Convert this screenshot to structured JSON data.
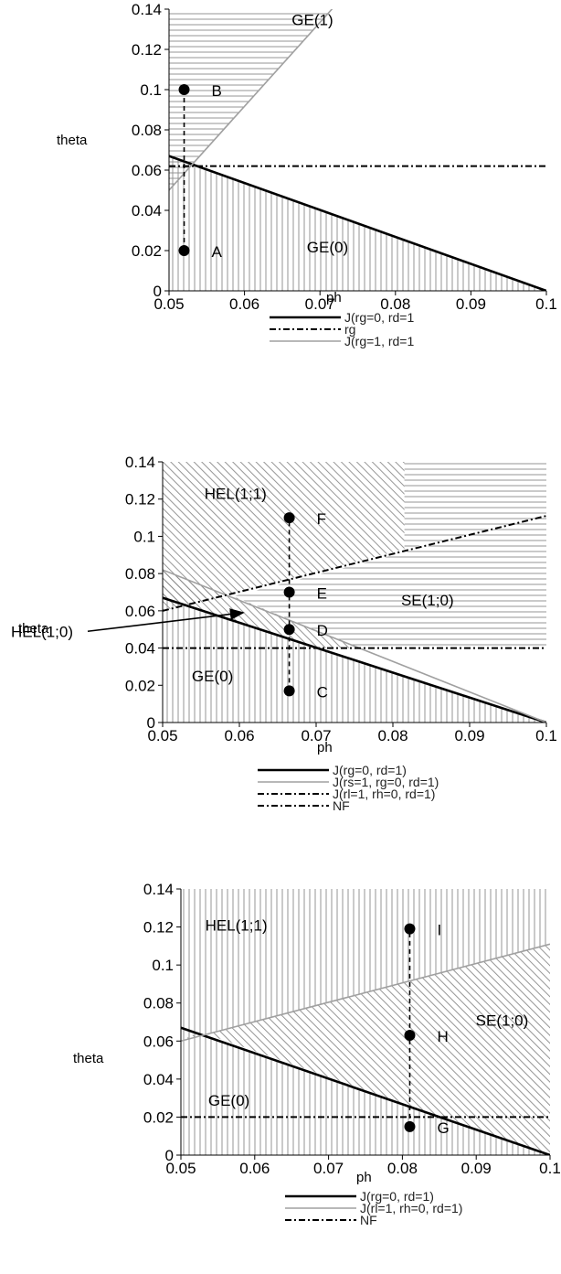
{
  "chart_data": [
    {
      "type": "line",
      "xlabel": "ph",
      "ylabel": "theta",
      "xlim": [
        0.05,
        0.1
      ],
      "ylim": [
        0,
        0.14
      ],
      "x_ticks": [
        "0.05",
        "0.06",
        "0.07",
        "0.08",
        "0.09",
        "0.1"
      ],
      "y_ticks": [
        "0",
        "0.02",
        "0.04",
        "0.06",
        "0.08",
        "0.1",
        "0.12",
        "0.14"
      ],
      "lines": [
        {
          "name": "J(rg=0, rd=1",
          "style": "solid-thick",
          "x": [
            0.05,
            0.1
          ],
          "y": [
            0.067,
            0.0
          ]
        },
        {
          "name": "rg",
          "style": "dashdot",
          "x": [
            0.05,
            0.1
          ],
          "y": [
            0.062,
            0.062
          ]
        },
        {
          "name": "J(rg=1, rd=1",
          "style": "solid-gray",
          "x": [
            0.05,
            0.0735
          ],
          "y": [
            0.05,
            0.148
          ]
        }
      ],
      "legend": [
        "J(rg=0, rd=1",
        "rg",
        "J(rg=1, rd=1"
      ],
      "regions": [
        {
          "label": "GE(1)",
          "x": 0.069,
          "y": 0.132
        },
        {
          "label": "GE(0)",
          "x": 0.071,
          "y": 0.019
        }
      ],
      "points": [
        {
          "label": "B",
          "x": 0.052,
          "y": 0.1
        },
        {
          "label": "A",
          "x": 0.052,
          "y": 0.02
        }
      ],
      "guides": [
        {
          "x": 0.052,
          "y0": 0.02,
          "y1": 0.1
        }
      ]
    },
    {
      "type": "line",
      "xlabel": "ph",
      "ylabel": "theta",
      "xlim": [
        0.05,
        0.1
      ],
      "ylim": [
        0,
        0.14
      ],
      "x_ticks": [
        "0.05",
        "0.06",
        "0.07",
        "0.08",
        "0.09",
        "0.1"
      ],
      "y_ticks": [
        "0",
        "0.02",
        "0.04",
        "0.06",
        "0.08",
        "0.1",
        "0.12",
        "0.14"
      ],
      "lines": [
        {
          "name": "J(rg=0, rd=1)",
          "style": "solid-thick",
          "x": [
            0.05,
            0.1
          ],
          "y": [
            0.067,
            0.0
          ]
        },
        {
          "name": "J(rs=1, rg=0, rd=1)",
          "style": "solid-gray",
          "x": [
            0.05,
            0.1
          ],
          "y": [
            0.082,
            0.0
          ]
        },
        {
          "name": "J(rl=1, rh=0, rd=1)",
          "style": "dashdot",
          "x": [
            0.05,
            0.1
          ],
          "y": [
            0.06,
            0.111
          ]
        },
        {
          "name": "NF",
          "style": "dashdot",
          "x": [
            0.05,
            0.1
          ],
          "y": [
            0.04,
            0.04
          ]
        }
      ],
      "legend": [
        "J(rg=0, rd=1)",
        "J(rs=1, rg=0, rd=1)",
        "J(rl=1, rh=0, rd=1)",
        "NF"
      ],
      "regions": [
        {
          "label": "HEL(1;1)",
          "x": 0.0595,
          "y": 0.12
        },
        {
          "label": "SE(1;0)",
          "x": 0.0845,
          "y": 0.063
        },
        {
          "label": "GE(0)",
          "x": 0.0565,
          "y": 0.022
        }
      ],
      "annotations": [
        {
          "text": "HEL(1;0)",
          "arrow_to": {
            "x": 0.0605,
            "y": 0.059
          }
        }
      ],
      "points": [
        {
          "label": "F",
          "x": 0.0665,
          "y": 0.11
        },
        {
          "label": "E",
          "x": 0.0665,
          "y": 0.07
        },
        {
          "label": "D",
          "x": 0.0665,
          "y": 0.05
        },
        {
          "label": "C",
          "x": 0.0665,
          "y": 0.017
        }
      ],
      "guides": [
        {
          "x": 0.0665,
          "y0": 0.017,
          "y1": 0.11
        }
      ]
    },
    {
      "type": "line",
      "xlabel": "ph",
      "ylabel": "theta",
      "xlim": [
        0.05,
        0.1
      ],
      "ylim": [
        0,
        0.14
      ],
      "x_ticks": [
        "0.05",
        "0.06",
        "0.07",
        "0.08",
        "0.09",
        "0.1"
      ],
      "y_ticks": [
        "0",
        "0.02",
        "0.04",
        "0.06",
        "0.08",
        "0.1",
        "0.12",
        "0.14"
      ],
      "lines": [
        {
          "name": "J(rg=0, rd=1)",
          "style": "solid-thick",
          "x": [
            0.05,
            0.1
          ],
          "y": [
            0.067,
            0.0
          ]
        },
        {
          "name": "J(rl=1, rh=0, rd=1)",
          "style": "solid-gray",
          "x": [
            0.05,
            0.1
          ],
          "y": [
            0.06,
            0.111
          ]
        },
        {
          "name": "NF",
          "style": "dashdot",
          "x": [
            0.05,
            0.1
          ],
          "y": [
            0.02,
            0.02
          ]
        }
      ],
      "legend": [
        "J(rg=0, rd=1)",
        "J(rl=1, rh=0, rd=1)",
        "NF"
      ],
      "regions": [
        {
          "label": "HEL(1;1)",
          "x": 0.0575,
          "y": 0.118
        },
        {
          "label": "SE(1;0)",
          "x": 0.0935,
          "y": 0.068
        },
        {
          "label": "GE(0)",
          "x": 0.0565,
          "y": 0.026
        }
      ],
      "points": [
        {
          "label": "I",
          "x": 0.081,
          "y": 0.119
        },
        {
          "label": "H",
          "x": 0.081,
          "y": 0.063
        },
        {
          "label": "G",
          "x": 0.081,
          "y": 0.015
        }
      ],
      "guides": [
        {
          "x": 0.081,
          "y0": 0.015,
          "y1": 0.119
        }
      ]
    }
  ]
}
